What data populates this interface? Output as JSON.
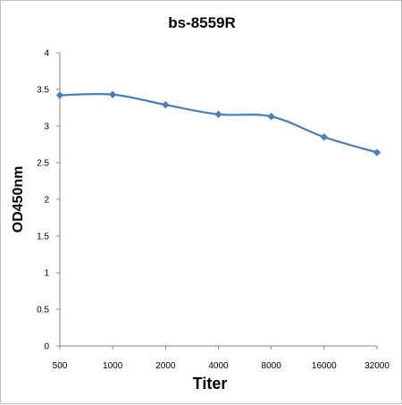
{
  "chart_data": {
    "type": "line",
    "title": "bs-8559R",
    "xlabel": "Titer",
    "ylabel": "OD450nm",
    "categories": [
      "500",
      "1000",
      "2000",
      "4000",
      "8000",
      "16000",
      "32000"
    ],
    "series": [
      {
        "values": [
          3.42,
          3.43,
          3.29,
          3.16,
          3.13,
          2.85,
          2.64
        ]
      }
    ],
    "ylim": [
      0,
      4
    ],
    "yticks": [
      "0",
      "0.5",
      "1",
      "1.5",
      "2",
      "2.5",
      "3",
      "3.5",
      "4"
    ],
    "grid": false,
    "legend": "none",
    "line_color": "#4a7ebb",
    "marker": "diamond"
  }
}
